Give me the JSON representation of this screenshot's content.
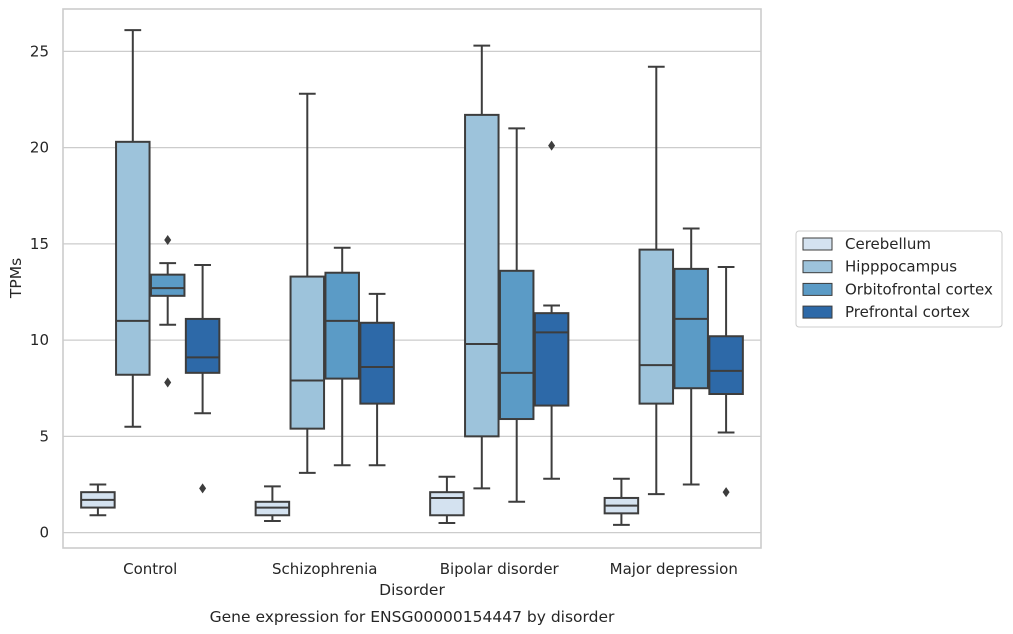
{
  "chart_data": {
    "type": "box",
    "title": "Gene expression for ENSG00000154447 by disorder",
    "xlabel": "Disorder",
    "ylabel": "TPMs",
    "ylim": [
      -0.8,
      27.2
    ],
    "yticks": [
      0,
      5,
      10,
      15,
      20,
      25
    ],
    "grid": "horizontal",
    "legend_position": "right",
    "categories": [
      "Control",
      "Schizophrenia",
      "Bipolar disorder",
      "Major depression"
    ],
    "series": [
      {
        "name": "Cerebellum",
        "color": "#d4e2f0",
        "boxes": [
          {
            "whisker_low": 0.9,
            "q1": 1.3,
            "median": 1.7,
            "q3": 2.1,
            "whisker_high": 2.5,
            "outliers": []
          },
          {
            "whisker_low": 0.6,
            "q1": 0.9,
            "median": 1.3,
            "q3": 1.6,
            "whisker_high": 2.4,
            "outliers": []
          },
          {
            "whisker_low": 0.5,
            "q1": 0.9,
            "median": 1.8,
            "q3": 2.1,
            "whisker_high": 2.9,
            "outliers": []
          },
          {
            "whisker_low": 0.4,
            "q1": 1.0,
            "median": 1.4,
            "q3": 1.8,
            "whisker_high": 2.8,
            "outliers": []
          }
        ]
      },
      {
        "name": "Hipppocampus",
        "color": "#9dc3db",
        "boxes": [
          {
            "whisker_low": 5.5,
            "q1": 8.2,
            "median": 11.0,
            "q3": 20.3,
            "whisker_high": 26.1,
            "outliers": []
          },
          {
            "whisker_low": 3.1,
            "q1": 5.4,
            "median": 7.9,
            "q3": 13.3,
            "whisker_high": 22.8,
            "outliers": []
          },
          {
            "whisker_low": 2.3,
            "q1": 5.0,
            "median": 9.8,
            "q3": 21.7,
            "whisker_high": 25.3,
            "outliers": []
          },
          {
            "whisker_low": 2.0,
            "q1": 6.7,
            "median": 8.7,
            "q3": 14.7,
            "whisker_high": 24.2,
            "outliers": []
          }
        ]
      },
      {
        "name": "Orbitofrontal cortex",
        "color": "#5b9bc6",
        "boxes": [
          {
            "whisker_low": 10.8,
            "q1": 12.3,
            "median": 12.7,
            "q3": 13.4,
            "whisker_high": 14.0,
            "outliers": [
              15.2,
              7.8
            ]
          },
          {
            "whisker_low": 3.5,
            "q1": 8.0,
            "median": 11.0,
            "q3": 13.5,
            "whisker_high": 14.8,
            "outliers": []
          },
          {
            "whisker_low": 1.6,
            "q1": 5.9,
            "median": 8.3,
            "q3": 13.6,
            "whisker_high": 21.0,
            "outliers": []
          },
          {
            "whisker_low": 2.5,
            "q1": 7.5,
            "median": 11.1,
            "q3": 13.7,
            "whisker_high": 15.8,
            "outliers": []
          }
        ]
      },
      {
        "name": "Prefrontal cortex",
        "color": "#2d69a8",
        "boxes": [
          {
            "whisker_low": 6.2,
            "q1": 8.3,
            "median": 9.1,
            "q3": 11.1,
            "whisker_high": 13.9,
            "outliers": [
              2.3
            ]
          },
          {
            "whisker_low": 3.5,
            "q1": 6.7,
            "median": 8.6,
            "q3": 10.9,
            "whisker_high": 12.4,
            "outliers": []
          },
          {
            "whisker_low": 2.8,
            "q1": 6.6,
            "median": 10.4,
            "q3": 11.4,
            "whisker_high": 11.8,
            "outliers": [
              20.1
            ]
          },
          {
            "whisker_low": 5.2,
            "q1": 7.2,
            "median": 8.4,
            "q3": 10.2,
            "whisker_high": 13.8,
            "outliers": [
              2.1
            ]
          }
        ]
      }
    ]
  }
}
